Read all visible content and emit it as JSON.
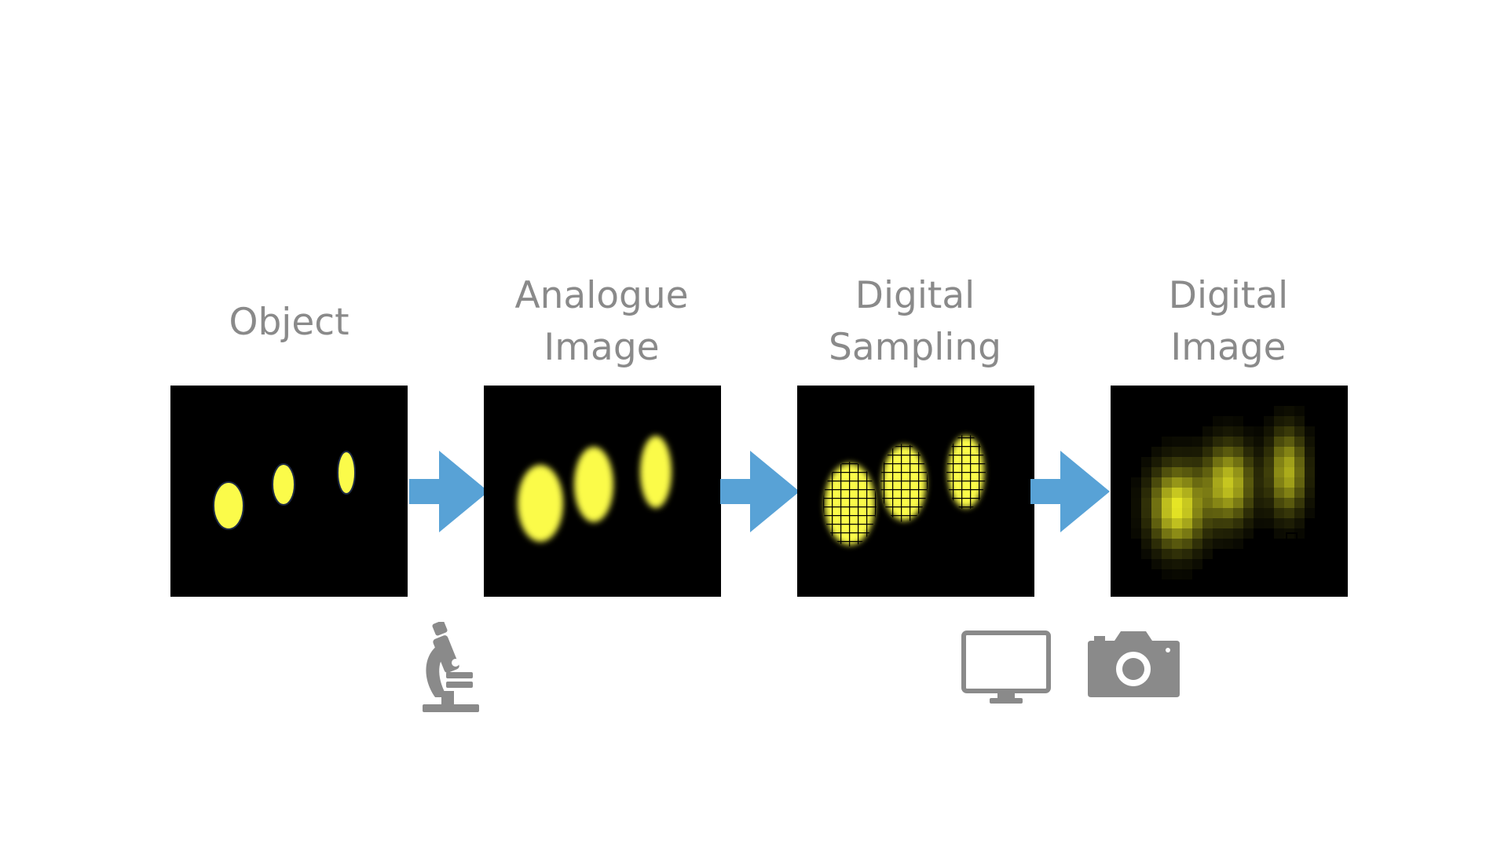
{
  "stages": [
    {
      "line1": "Object",
      "line2": ""
    },
    {
      "line1": "Analogue",
      "line2": "Image"
    },
    {
      "line1": "Digital",
      "line2": "Sampling"
    },
    {
      "line1": "Digital",
      "line2": "Image"
    }
  ],
  "colors": {
    "label": "#8a8a8a",
    "arrow": "#58a2d6",
    "spot": "#fbfb4a",
    "panel": "#000000",
    "icon": "#8a8a8a"
  },
  "icons": [
    "microscope-icon",
    "monitor-icon",
    "camera-icon"
  ]
}
